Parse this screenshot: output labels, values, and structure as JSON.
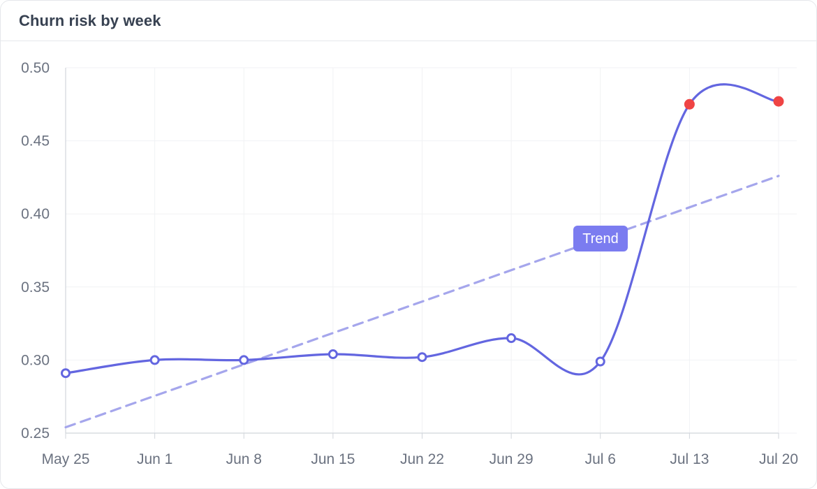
{
  "card": {
    "title": "Churn risk by week"
  },
  "chart_data": {
    "type": "line",
    "title": "Churn risk by week",
    "xlabel": "",
    "ylabel": "",
    "categories": [
      "May 25",
      "Jun 1",
      "Jun 8",
      "Jun 15",
      "Jun 22",
      "Jun 29",
      "Jul 6",
      "Jul 13",
      "Jul 20"
    ],
    "ylim": [
      0.25,
      0.5
    ],
    "yticks": [
      "0.25",
      "0.30",
      "0.35",
      "0.40",
      "0.45",
      "0.50"
    ],
    "series": [
      {
        "values": [
          0.291,
          0.3,
          0.3,
          0.304,
          0.302,
          0.315,
          0.299,
          0.475,
          0.477
        ],
        "color": "#6366e0",
        "highlighted_points": [
          7,
          8
        ],
        "highlight_color": "#ef4444"
      }
    ],
    "trend": {
      "label": "Trend",
      "start": 0.254,
      "end": 0.426,
      "color": "#a5a6ec",
      "label_bg": "#7b7cf0"
    },
    "grid": true,
    "legend": "none"
  }
}
